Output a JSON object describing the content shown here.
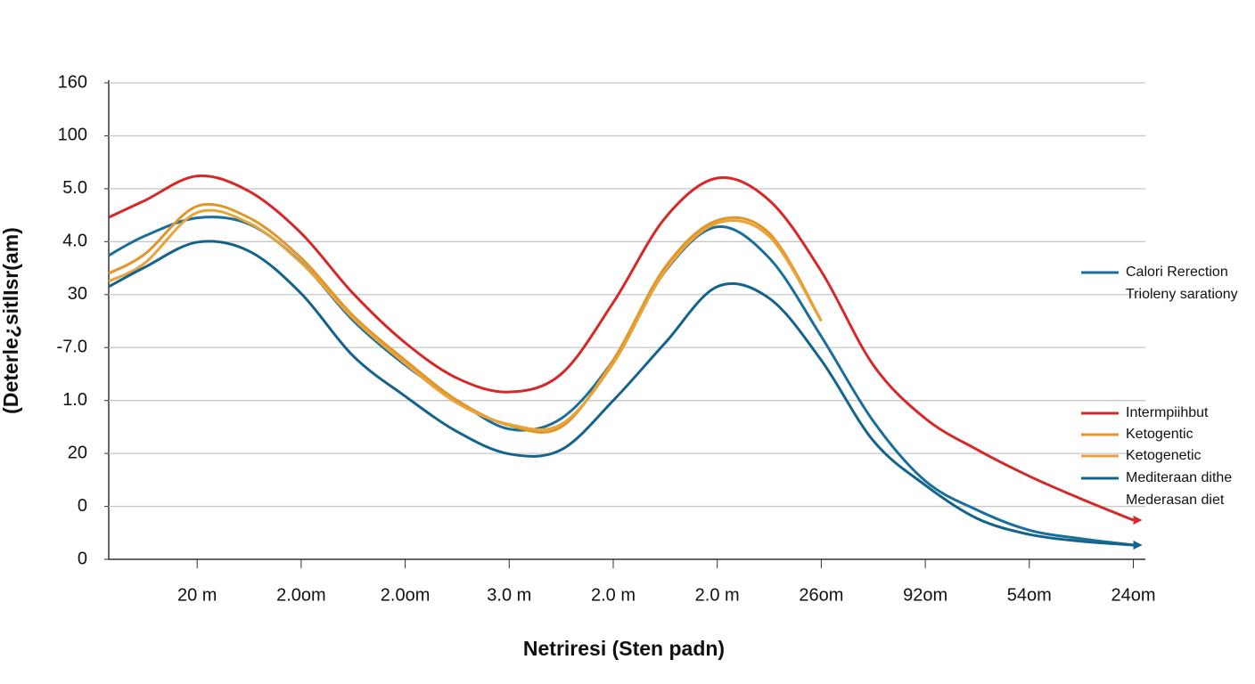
{
  "chart_data": {
    "type": "line",
    "x_label": "Netriresi (Sten padn)",
    "y_label": "(Deterle¿sitlIsr(am)",
    "x": [
      0.15,
      0.5,
      1,
      1.5,
      2,
      2.5,
      3,
      3.5,
      4,
      4.5,
      5,
      5.5,
      6,
      6.5,
      7,
      7.5,
      8,
      8.5,
      9,
      9.5,
      10
    ],
    "xlim": [
      0.15,
      10.15
    ],
    "xticks": [
      {
        "value": 1,
        "label": "20 m"
      },
      {
        "value": 2,
        "label": "2.0om"
      },
      {
        "value": 3,
        "label": "2.0om"
      },
      {
        "value": 4,
        "label": "3.0 m"
      },
      {
        "value": 5,
        "label": "2.0 m"
      },
      {
        "value": 6,
        "label": "2.0 m"
      },
      {
        "value": 7,
        "label": "26om"
      },
      {
        "value": 8,
        "label": "92om"
      },
      {
        "value": 9,
        "label": "54om"
      },
      {
        "value": 10,
        "label": "24om"
      }
    ],
    "ylim": [
      0,
      9
    ],
    "yticks": [
      {
        "value": 0,
        "label": "0"
      },
      {
        "value": 1,
        "label": "0"
      },
      {
        "value": 2,
        "label": "20"
      },
      {
        "value": 3,
        "label": "1.0"
      },
      {
        "value": 4,
        "label": "-7.0"
      },
      {
        "value": 5,
        "label": "30"
      },
      {
        "value": 6,
        "label": "4.0"
      },
      {
        "value": 7,
        "label": "5.0"
      },
      {
        "value": 8,
        "label": "100"
      },
      {
        "value": 9,
        "label": "160"
      }
    ],
    "grid": true,
    "legend_position": "right",
    "legend_notes": [
      "Trioleny sarationy",
      "Mederasan diet"
    ],
    "series": [
      {
        "name": "Calori Rerection",
        "color": "#1a6f9a",
        "values": [
          5.74,
          6.11,
          6.45,
          6.33,
          5.61,
          4.51,
          3.67,
          3.0,
          2.46,
          2.66,
          3.76,
          5.44,
          6.28,
          5.69,
          4.21,
          2.61,
          1.48,
          0.93,
          0.55,
          0.39,
          0.27
        ]
      },
      {
        "name": "Intermpiihbut",
        "color": "#d62828",
        "values": [
          6.46,
          6.78,
          7.24,
          6.95,
          6.16,
          5.02,
          4.09,
          3.42,
          3.16,
          3.5,
          4.85,
          6.45,
          7.2,
          6.78,
          5.44,
          3.67,
          2.66,
          2.07,
          1.57,
          1.14,
          0.74
        ]
      },
      {
        "name": "Ketogentic",
        "color": "#e0962a",
        "values": [
          5.4,
          5.77,
          6.67,
          6.45,
          5.69,
          4.6,
          3.76,
          3.0,
          2.53,
          2.5,
          3.76,
          5.52,
          6.4,
          6.16,
          4.51,
          null,
          null,
          null,
          null,
          null,
          null
        ]
      },
      {
        "name": "Ketogenetic",
        "color": "#e8a33a",
        "values": [
          5.25,
          5.6,
          6.55,
          6.35,
          5.6,
          4.55,
          3.7,
          2.95,
          2.55,
          2.55,
          3.7,
          5.45,
          6.35,
          6.1,
          4.5,
          null,
          null,
          null,
          null,
          null,
          null
        ]
      },
      {
        "name": "Mediteraan dithe",
        "color": "#14638c",
        "values": [
          5.15,
          5.52,
          5.99,
          5.82,
          5.02,
          3.84,
          3.08,
          2.41,
          1.99,
          2.07,
          3.0,
          4.09,
          5.15,
          4.93,
          3.76,
          2.24,
          1.4,
          0.77,
          0.47,
          0.34,
          0.27
        ]
      }
    ]
  }
}
